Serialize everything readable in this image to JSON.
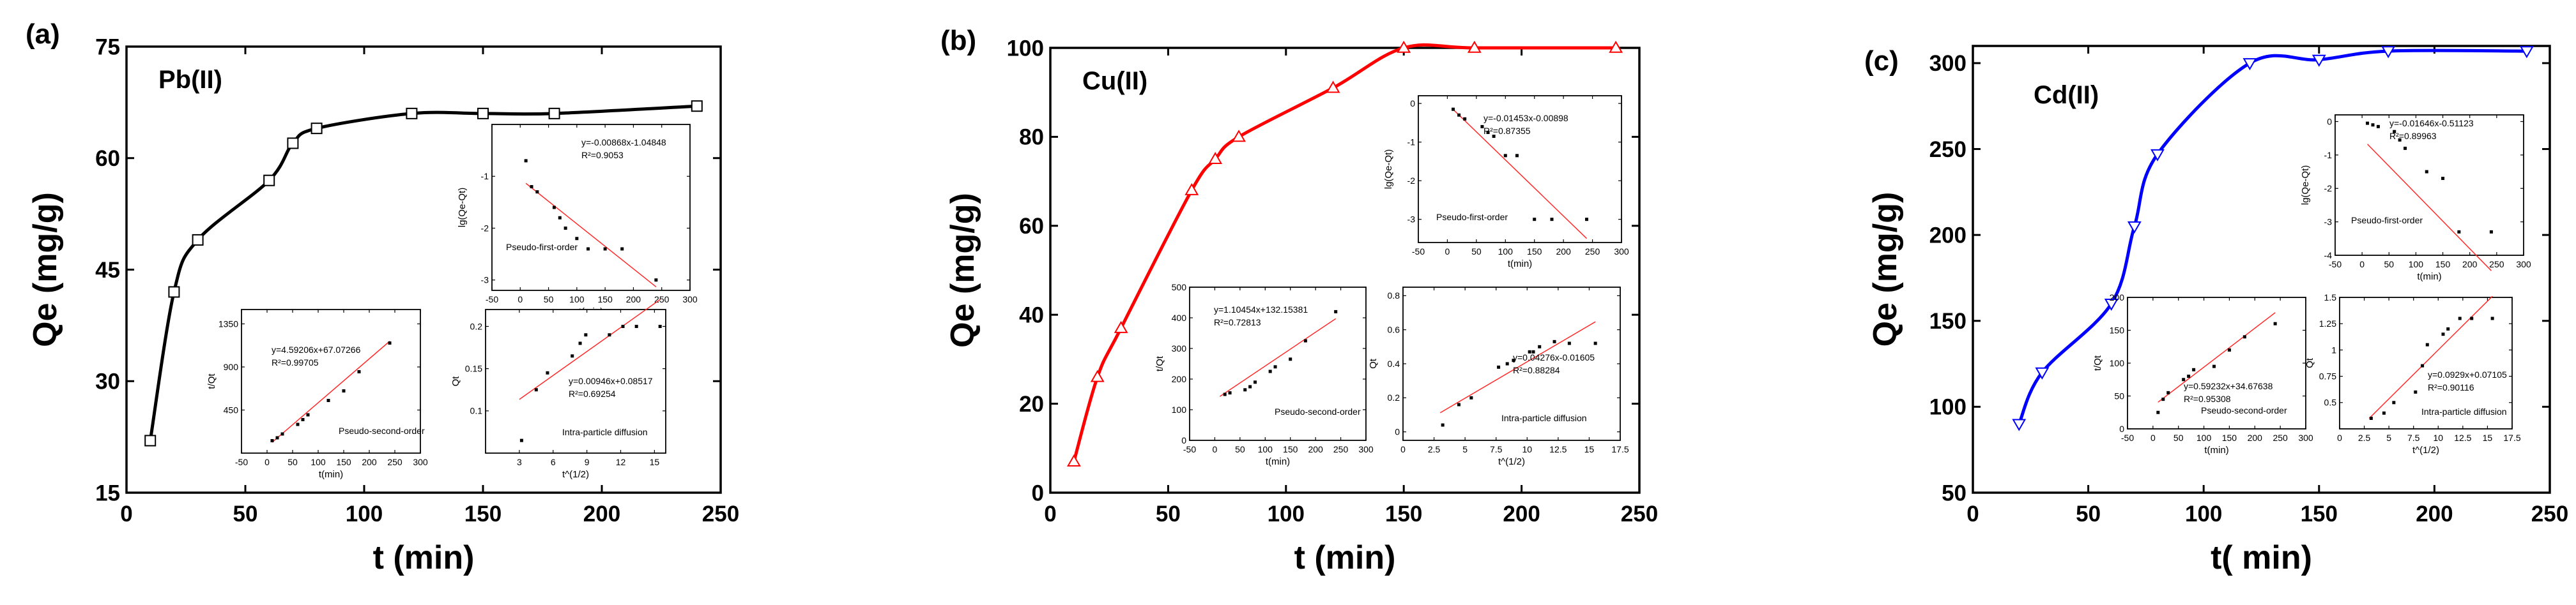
{
  "chart_data": [
    {
      "type": "line",
      "panel_label": "(a)",
      "title": "Pb(II)",
      "xlabel": "t (min)",
      "ylabel": "Qe (mg/g)",
      "xlim": [
        0,
        250
      ],
      "ylim": [
        15,
        75
      ],
      "xticks": [
        0,
        50,
        100,
        150,
        200,
        250
      ],
      "yticks": [
        15,
        30,
        45,
        60,
        75
      ],
      "series": [
        {
          "name": "Pb(II)",
          "marker": "square",
          "color": "#000000",
          "x": [
            10,
            20,
            30,
            60,
            70,
            80,
            120,
            150,
            180,
            240
          ],
          "y": [
            22,
            42,
            49,
            57,
            62,
            64,
            66,
            66,
            66,
            67
          ]
        }
      ],
      "insets": [
        {
          "type": "scatter",
          "xlabel": "t(min)",
          "ylabel": "lg(Qe-Qt)",
          "xlim": [
            -50,
            300
          ],
          "ylim": [
            -3.2,
            0
          ],
          "xticks": [
            -50,
            0,
            50,
            100,
            150,
            200,
            250,
            300
          ],
          "yticks": [
            -3,
            -2,
            -1
          ],
          "equation": "y=-0.00868x-1.04848",
          "r2_label": "R²=0.9053",
          "caption": "Pseudo-first-order",
          "x": [
            10,
            20,
            30,
            60,
            70,
            80,
            100,
            120,
            150,
            180,
            240
          ],
          "y": [
            -0.7,
            -1.2,
            -1.3,
            -1.6,
            -1.8,
            -2.0,
            -2.2,
            -2.4,
            -2.4,
            -2.4,
            -3.0
          ],
          "fit": {
            "slope": -0.00868,
            "intercept": -1.04848,
            "x_range": [
              10,
              240
            ]
          }
        },
        {
          "type": "scatter",
          "xlabel": "t(min)",
          "ylabel": "t/Qt",
          "xlim": [
            -50,
            300
          ],
          "ylim": [
            0,
            1500
          ],
          "xticks": [
            -50,
            0,
            50,
            100,
            150,
            200,
            250,
            300
          ],
          "yticks": [
            450,
            900,
            1350
          ],
          "equation": "y=4.59206x+67.07266",
          "r2_label": "R²=0.99705",
          "caption": "Pseudo-second-order",
          "x": [
            10,
            20,
            30,
            60,
            70,
            80,
            120,
            150,
            180,
            240
          ],
          "y": [
            130,
            160,
            200,
            300,
            350,
            400,
            550,
            650,
            850,
            1150
          ],
          "fit": {
            "slope": 4.59206,
            "intercept": 67.07266,
            "x_range": [
              10,
              240
            ]
          }
        },
        {
          "type": "scatter",
          "xlabel": "t^(1/2)",
          "ylabel": "Qt",
          "xlim": [
            0,
            16
          ],
          "ylim": [
            0.05,
            0.22
          ],
          "xticks": [
            3,
            6,
            9,
            12,
            15
          ],
          "yticks": [
            0.1,
            0.15,
            0.2
          ],
          "equation": "y=0.00946x+0.08517",
          "r2_label": "R²=0.69254",
          "caption": "Intra-particle diffusion",
          "x": [
            3.2,
            4.5,
            5.5,
            7.7,
            8.4,
            8.9,
            11,
            12.2,
            13.4,
            15.5
          ],
          "y": [
            0.065,
            0.125,
            0.145,
            0.165,
            0.18,
            0.19,
            0.19,
            0.2,
            0.2,
            0.2
          ],
          "fit": {
            "slope": 0.00946,
            "intercept": 0.08517,
            "x_range": [
              3,
              15.5
            ]
          }
        }
      ]
    },
    {
      "type": "line",
      "panel_label": "(b)",
      "title": "Cu(II)",
      "xlabel": "t (min)",
      "ylabel": "Qe (mg/g)",
      "xlim": [
        0,
        250
      ],
      "ylim": [
        0,
        100
      ],
      "xticks": [
        0,
        50,
        100,
        150,
        200,
        250
      ],
      "yticks": [
        0,
        20,
        40,
        60,
        80,
        100
      ],
      "series": [
        {
          "name": "Cu(II)",
          "marker": "triangle-up",
          "color": "#ff0000",
          "x": [
            10,
            20,
            30,
            60,
            70,
            80,
            120,
            150,
            180,
            240
          ],
          "y": [
            7,
            26,
            37,
            68,
            75,
            80,
            91,
            100,
            100,
            100
          ]
        }
      ],
      "insets": [
        {
          "type": "scatter",
          "xlabel": "t(min)",
          "ylabel": "lg(Qe-Qt)",
          "xlim": [
            -50,
            300
          ],
          "ylim": [
            -3.6,
            0.2
          ],
          "xticks": [
            -50,
            0,
            50,
            100,
            150,
            200,
            250,
            300
          ],
          "yticks": [
            -3,
            -2,
            -1,
            0
          ],
          "equation": "y=-0.01453x-0.00898",
          "r2_label": "R²=0.87355",
          "caption": "Pseudo-first-order",
          "x": [
            10,
            20,
            30,
            60,
            70,
            80,
            100,
            120,
            150,
            180,
            240
          ],
          "y": [
            -0.15,
            -0.3,
            -0.4,
            -0.6,
            -0.75,
            -0.85,
            -1.35,
            -1.35,
            -3.0,
            -3.0,
            -3.0
          ],
          "fit": {
            "slope": -0.01453,
            "intercept": -0.00898,
            "x_range": [
              10,
              240
            ]
          }
        },
        {
          "type": "scatter",
          "xlabel": "t(min)",
          "ylabel": "t/Qt",
          "xlim": [
            -50,
            300
          ],
          "ylim": [
            0,
            500
          ],
          "xticks": [
            -50,
            0,
            50,
            100,
            150,
            200,
            250,
            300
          ],
          "yticks": [
            0,
            100,
            200,
            300,
            400,
            500
          ],
          "equation": "y=1.10454x+132.15381",
          "r2_label": "R²=0.72813",
          "caption": "Pseudo-second-order",
          "x": [
            20,
            30,
            60,
            70,
            80,
            110,
            120,
            150,
            180,
            240
          ],
          "y": [
            150,
            155,
            165,
            175,
            190,
            225,
            240,
            265,
            325,
            420
          ],
          "fit": {
            "slope": 1.10454,
            "intercept": 132.15381,
            "x_range": [
              10,
              240
            ]
          }
        },
        {
          "type": "scatter",
          "xlabel": "t^(1/2)",
          "ylabel": "Qt",
          "xlim": [
            0,
            17.5
          ],
          "ylim": [
            -0.05,
            0.85
          ],
          "xticks": [
            0,
            2.5,
            5,
            7.5,
            10,
            12.5,
            15,
            17.5
          ],
          "yticks": [
            0,
            0.2,
            0.4,
            0.6,
            0.8
          ],
          "equation": "y=0.04276x-0.01605",
          "r2_label": "R²=0.88284",
          "caption": "Intra-particle diffusion",
          "x": [
            3.2,
            4.5,
            5.5,
            7.7,
            8.4,
            8.9,
            10.2,
            10.5,
            11,
            12.2,
            13.4,
            15.5
          ],
          "y": [
            0.04,
            0.16,
            0.2,
            0.38,
            0.4,
            0.42,
            0.47,
            0.47,
            0.5,
            0.53,
            0.52,
            0.52
          ],
          "fit": {
            "slope": 0.04276,
            "intercept": -0.01605,
            "x_range": [
              3,
              15.5
            ]
          }
        }
      ]
    },
    {
      "type": "line",
      "panel_label": "(c)",
      "title": "Cd(II)",
      "xlabel": "t( min)",
      "ylabel": "Qe (mg/g)",
      "xlim": [
        0,
        250
      ],
      "ylim": [
        50,
        310
      ],
      "xticks": [
        0,
        50,
        100,
        150,
        200,
        250
      ],
      "yticks": [
        50,
        100,
        150,
        200,
        250,
        300
      ],
      "series": [
        {
          "name": "Cd(II)",
          "marker": "triangle-down",
          "color": "#0000ff",
          "x": [
            20,
            30,
            60,
            70,
            80,
            120,
            150,
            180,
            240
          ],
          "y": [
            90,
            120,
            160,
            205,
            247,
            300,
            302,
            307,
            307
          ]
        }
      ],
      "insets": [
        {
          "type": "scatter",
          "xlabel": "t(min)",
          "ylabel": "lg(Qe-Qt)",
          "xlim": [
            -50,
            300
          ],
          "ylim": [
            -4,
            0.2
          ],
          "xticks": [
            -50,
            0,
            50,
            100,
            150,
            200,
            250,
            300
          ],
          "yticks": [
            -4,
            -3,
            -2,
            -1,
            0
          ],
          "equation": "y=-0.01646x-0.51123",
          "r2_label": "R²=0.89963",
          "caption": "Pseudo-first-order",
          "x": [
            10,
            20,
            30,
            60,
            70,
            80,
            120,
            150,
            180,
            240
          ],
          "y": [
            -0.05,
            -0.1,
            -0.15,
            -0.3,
            -0.55,
            -0.8,
            -1.5,
            -1.7,
            -3.3,
            -3.3
          ],
          "fit": {
            "slope": -0.01646,
            "intercept": -0.51123,
            "x_range": [
              10,
              240
            ]
          }
        },
        {
          "type": "scatter",
          "xlabel": "t(min)",
          "ylabel": "t/Qt",
          "xlim": [
            -50,
            300
          ],
          "ylim": [
            0,
            200
          ],
          "xticks": [
            -50,
            0,
            50,
            100,
            150,
            200,
            250,
            300
          ],
          "yticks": [
            0,
            50,
            100,
            150,
            200
          ],
          "equation": "y=0.59232x+34.67638",
          "r2_label": "R²=0.95308",
          "caption": "Pseudo-second-order",
          "x": [
            10,
            20,
            30,
            60,
            70,
            80,
            120,
            150,
            180,
            240
          ],
          "y": [
            25,
            45,
            55,
            75,
            80,
            90,
            95,
            120,
            140,
            160
          ],
          "fit": {
            "slope": 0.59232,
            "intercept": 34.67638,
            "x_range": [
              10,
              240
            ]
          }
        },
        {
          "type": "scatter",
          "xlabel": "t^(1/2)",
          "ylabel": "Qt",
          "xlim": [
            0,
            17.5
          ],
          "ylim": [
            0.25,
            1.5
          ],
          "xticks": [
            0,
            2.5,
            5,
            7.5,
            10,
            12.5,
            15,
            17.5
          ],
          "yticks": [
            0.5,
            0.75,
            1,
            1.25,
            1.5
          ],
          "equation": "y=0.0929x+0.07105",
          "r2_label": "R²=0.90116",
          "caption": "Intra-particle diffusion",
          "x": [
            3.2,
            4.5,
            5.5,
            7.7,
            8.4,
            8.9,
            10.5,
            11,
            12.2,
            13.4,
            15.5
          ],
          "y": [
            0.35,
            0.4,
            0.5,
            0.6,
            0.85,
            1.05,
            1.15,
            1.2,
            1.3,
            1.3,
            1.3
          ],
          "fit": {
            "slope": 0.0929,
            "intercept": 0.07105,
            "x_range": [
              3,
              15.5
            ]
          }
        }
      ]
    }
  ]
}
